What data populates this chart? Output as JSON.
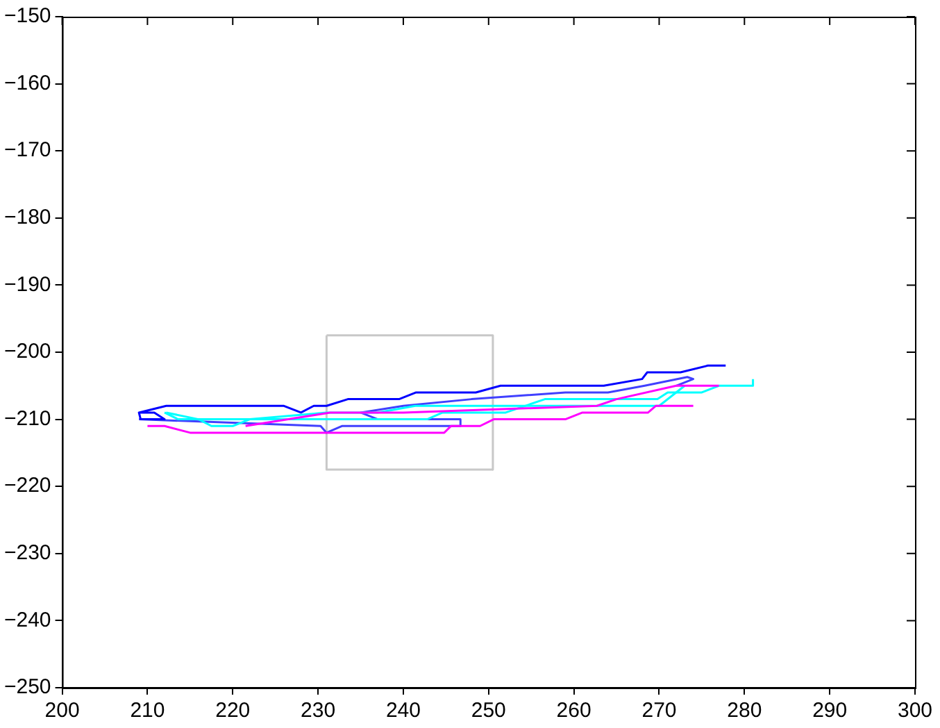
{
  "chart_data": {
    "type": "line",
    "xlim": [
      200,
      300
    ],
    "ylim": [
      -250,
      -150
    ],
    "xticks": [
      200,
      210,
      220,
      230,
      240,
      250,
      260,
      270,
      280,
      290,
      300
    ],
    "yticks": [
      -250,
      -240,
      -230,
      -220,
      -210,
      -200,
      -190,
      -180,
      -170,
      -160,
      -150
    ],
    "grid": false,
    "legend": false,
    "marker": "none",
    "line_style": "solid",
    "series": [
      {
        "color": "#ff00ff",
        "x": [
          210,
          212,
          215,
          244.8,
          245.6,
          249,
          250.6,
          259,
          261,
          268.7,
          269.6,
          274
        ],
        "values": [
          -211,
          -211,
          -212,
          -212,
          -211,
          -211,
          -210,
          -210,
          -209,
          -209,
          -208,
          -208
        ]
      },
      {
        "color": "#ff00ff",
        "x": [
          221.5,
          231.4,
          240,
          262.7,
          265,
          272,
          277
        ],
        "values": [
          -211,
          -209,
          -209,
          -208,
          -207,
          -205,
          -205
        ]
      },
      {
        "color": "#00ffff",
        "x": [
          212,
          213.6,
          242.8,
          244.6,
          252,
          256.6,
          269.8,
          271,
          275,
          277,
          281,
          281
        ],
        "values": [
          -209,
          -210,
          -210,
          -209,
          -209,
          -207,
          -207,
          -206,
          -206,
          -205,
          -205,
          -204
        ]
      },
      {
        "color": "#00ffff",
        "x": [
          212.2,
          216,
          217.5,
          220,
          222,
          231,
          237,
          241.4,
          270,
          273
        ],
        "values": [
          -209,
          -210,
          -211,
          -211,
          -210,
          -209,
          -209,
          -208,
          -208,
          -205
        ]
      },
      {
        "color": "#0000ff",
        "x": [
          209,
          210.8,
          212,
          209.2,
          209,
          212.2,
          226,
          228,
          229.5,
          231,
          233.5,
          239.5,
          241.5,
          248.5,
          251.4,
          263.5,
          268,
          268.6,
          272.5,
          275.7,
          277.8
        ],
        "values": [
          -209,
          -209,
          -210,
          -210,
          -209,
          -208,
          -208,
          -209,
          -208,
          -208,
          -207,
          -207,
          -206,
          -206,
          -205,
          -205,
          -204,
          -203,
          -203,
          -202,
          -202
        ]
      },
      {
        "color": "#4040ff",
        "x": [
          209,
          230.3,
          231,
          232.8,
          246.7,
          246.7,
          237,
          235,
          240,
          248,
          259,
          264,
          268.3,
          273.3,
          274,
          272
        ],
        "values": [
          -210,
          -211,
          -212,
          -211,
          -211,
          -210,
          -210,
          -209,
          -208,
          -207,
          -206,
          -206,
          -205,
          -203.7,
          -204,
          -205
        ]
      },
      {
        "color": "#c8c8c8",
        "x": [
          231,
          250.5,
          250.5
        ],
        "values": [
          -197.5,
          -197.5,
          -217.5
        ]
      },
      {
        "color": "#c8c8c8",
        "x": [
          250.5,
          231,
          231
        ],
        "values": [
          -217.5,
          -217.5,
          -197.5
        ]
      }
    ]
  }
}
